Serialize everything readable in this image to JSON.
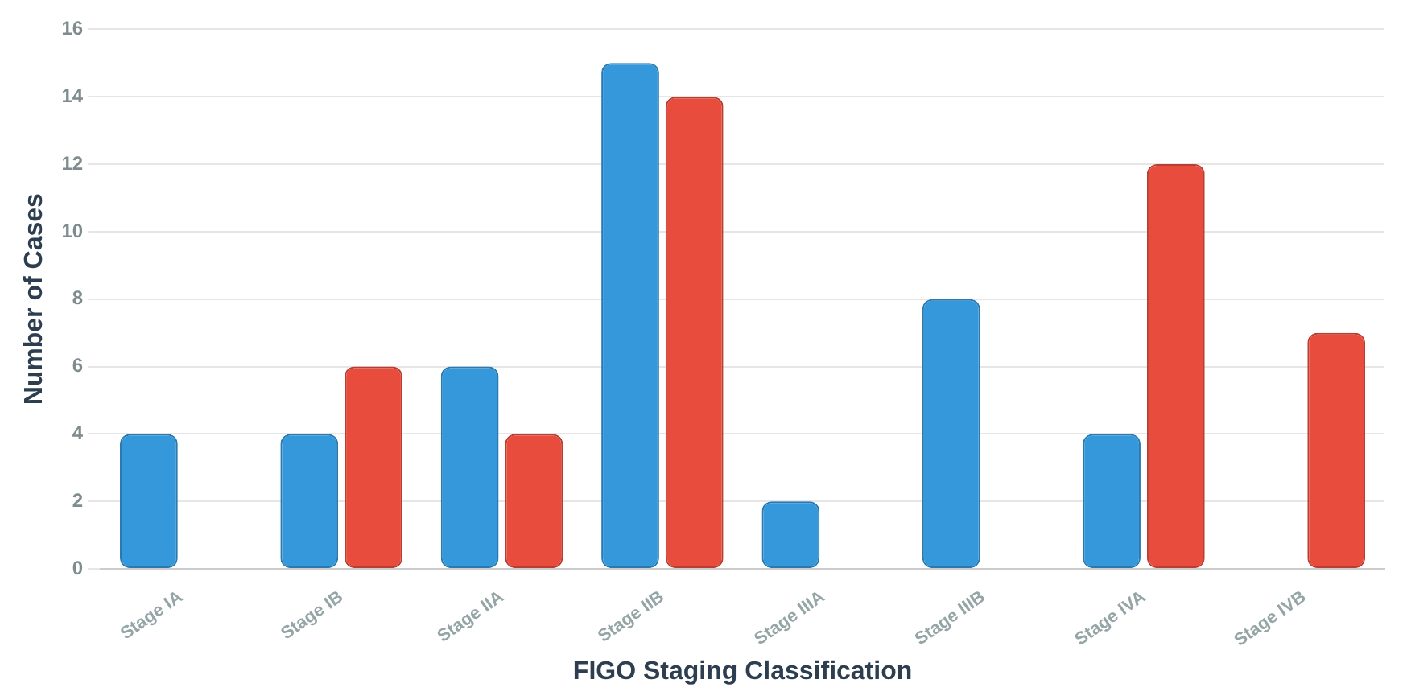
{
  "chart_data": {
    "type": "bar",
    "xlabel": "FIGO Staging Classification",
    "ylabel": "Number of Cases",
    "categories": [
      "Stage IA",
      "Stage IB",
      "Stage IIA",
      "Stage IIB",
      "Stage IIIA",
      "Stage IIIB",
      "Stage IVA",
      "Stage IVB"
    ],
    "series": [
      {
        "color": "#3498db",
        "values": [
          4,
          4,
          6,
          15,
          2,
          8,
          4,
          0
        ]
      },
      {
        "color": "#e74c3c",
        "values": [
          0,
          6,
          4,
          14,
          0,
          0,
          12,
          7
        ]
      }
    ],
    "ylim": [
      0,
      16
    ],
    "yticks": [
      0,
      2,
      4,
      6,
      8,
      10,
      12,
      14,
      16
    ],
    "grid": "y",
    "legend": false
  }
}
